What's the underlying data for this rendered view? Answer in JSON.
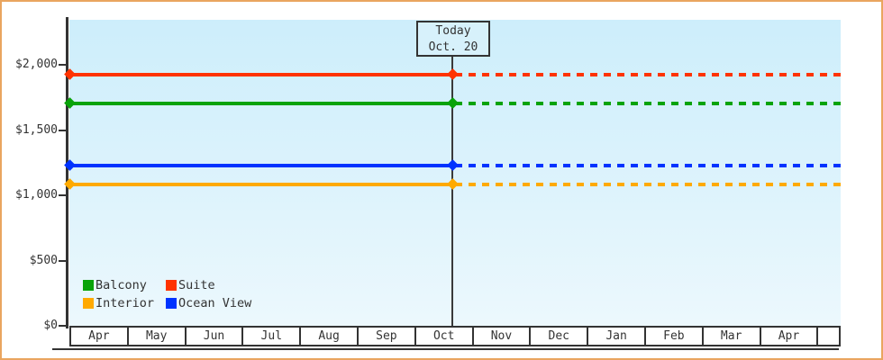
{
  "frame": {
    "border_color": "#e9a55f"
  },
  "chart_data": {
    "type": "line",
    "title": "",
    "xlabel": "",
    "ylabel": "",
    "categories": [
      "Apr",
      "May",
      "Jun",
      "Jul",
      "Aug",
      "Sep",
      "Oct",
      "Nov",
      "Dec",
      "Jan",
      "Feb",
      "Mar",
      "Apr"
    ],
    "series": [
      {
        "name": "Suite",
        "color": "#ff3300",
        "value": 1925,
        "style": "solid before today, dashed after"
      },
      {
        "name": "Balcony",
        "color": "#09a309",
        "value": 1705,
        "style": "solid before today, dashed after"
      },
      {
        "name": "Ocean View",
        "color": "#0033ff",
        "value": 1230,
        "style": "solid before today, dashed after"
      },
      {
        "name": "Interior",
        "color": "#ffaa00",
        "value": 1085,
        "style": "solid before today, dashed after"
      }
    ],
    "y_ticks": [
      {
        "label": "$2,000",
        "value": 2000
      },
      {
        "label": "$1,500",
        "value": 1500
      },
      {
        "label": "$1,000",
        "value": 1000
      },
      {
        "label": "$500",
        "value": 500
      },
      {
        "label": "$0",
        "value": 0
      }
    ],
    "ylim": [
      0,
      2345
    ],
    "grid": false,
    "legend_position": "bottom-left",
    "today": {
      "line1": "Today",
      "line2": "Oct. 20"
    }
  },
  "legend": {
    "items": [
      {
        "label": "Balcony",
        "color": "#09a309"
      },
      {
        "label": "Suite",
        "color": "#ff3300"
      },
      {
        "label": "Interior",
        "color": "#ffaa00"
      },
      {
        "label": "Ocean View",
        "color": "#0033ff"
      }
    ]
  }
}
